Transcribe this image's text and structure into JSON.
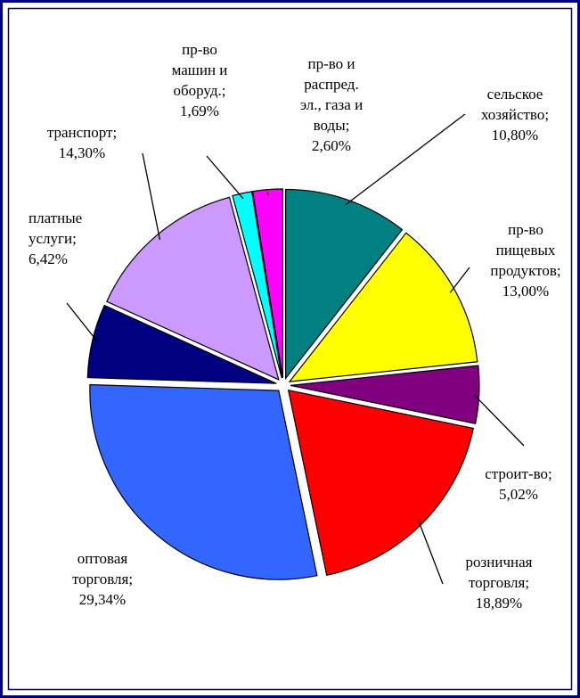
{
  "chart_data": {
    "type": "pie",
    "categories": [
      [
        "сельское",
        "хозяйство;"
      ],
      [
        "пр-во",
        "пищевых",
        "продуктов;"
      ],
      [
        "строит-во;"
      ],
      [
        "розничная",
        "торговля;"
      ],
      [
        "оптовая",
        "торговля;"
      ],
      [
        "платные",
        "услуги;"
      ],
      [
        "транспорт;"
      ],
      [
        "пр-во",
        "машин и",
        "оборуд.;"
      ],
      [
        "пр-во и",
        "распред.",
        "эл., газа и",
        "воды;"
      ]
    ],
    "values": [
      10.8,
      13.0,
      5.02,
      18.89,
      29.34,
      6.42,
      14.3,
      1.69,
      2.6
    ],
    "value_labels": [
      "10,80%",
      "13,00%",
      "5,02%",
      "18,89%",
      "29,34%",
      "6,42%",
      "14,30%",
      "1,69%",
      "2,60%"
    ],
    "colors": [
      "#008080",
      "#ffff00",
      "#800080",
      "#ff0000",
      "#3366ff",
      "#000080",
      "#cc99ff",
      "#00ffff",
      "#ff00ff"
    ]
  }
}
